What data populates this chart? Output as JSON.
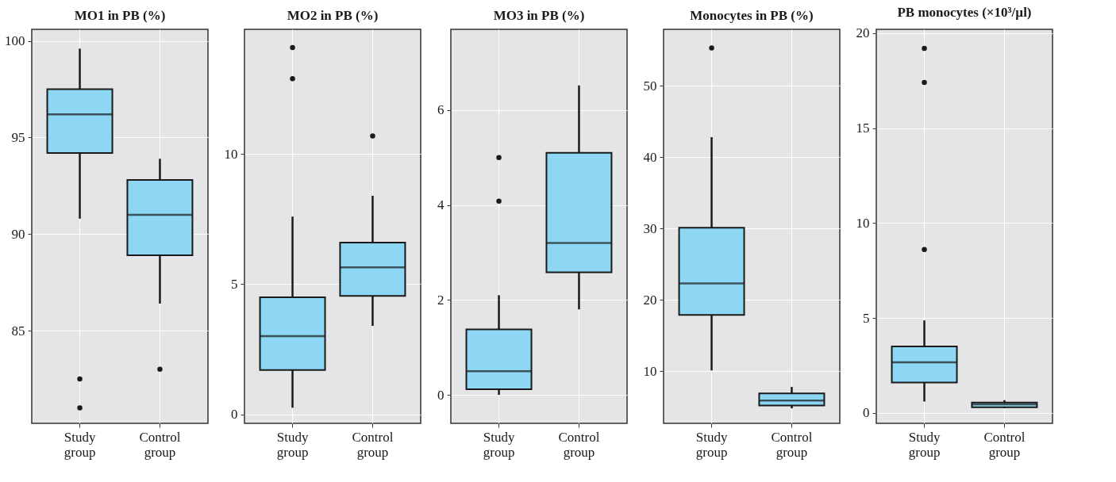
{
  "chart_data": [
    {
      "type": "box",
      "title": "MO1 in PB (%)",
      "categories": [
        "Study group",
        "Control group"
      ],
      "color": "#8dd7f5",
      "grid": true,
      "ylim": [
        80.2,
        100.6
      ],
      "yticks": [
        85,
        90,
        95,
        100
      ],
      "boxes": [
        {
          "low": 90.8,
          "q1": 94.2,
          "median": 96.2,
          "q3": 97.5,
          "high": 99.6,
          "outliers": [
            82.5,
            81.0
          ]
        },
        {
          "low": 86.4,
          "q1": 88.9,
          "median": 91.0,
          "q3": 92.8,
          "high": 93.9,
          "outliers": [
            83.0
          ]
        }
      ]
    },
    {
      "type": "box",
      "title": "MO2 in PB (%)",
      "categories": [
        "Study group",
        "Control group"
      ],
      "color": "#8dd7f5",
      "grid": true,
      "ylim": [
        -0.35,
        14.8
      ],
      "yticks": [
        0,
        5,
        10
      ],
      "boxes": [
        {
          "low": 0.25,
          "q1": 1.7,
          "median": 3.0,
          "q3": 4.5,
          "high": 7.6,
          "outliers": [
            14.1,
            12.9
          ]
        },
        {
          "low": 3.4,
          "q1": 4.55,
          "median": 5.65,
          "q3": 6.6,
          "high": 8.4,
          "outliers": [
            10.7
          ]
        }
      ]
    },
    {
      "type": "box",
      "title": "MO3 in PB (%)",
      "categories": [
        "Study group",
        "Control group"
      ],
      "color": "#8dd7f5",
      "grid": true,
      "ylim": [
        -0.6,
        7.7
      ],
      "yticks": [
        0,
        2,
        4,
        6
      ],
      "boxes": [
        {
          "low": 0.0,
          "q1": 0.12,
          "median": 0.5,
          "q3": 1.38,
          "high": 2.1,
          "outliers": [
            5.0,
            4.08
          ]
        },
        {
          "low": 1.8,
          "q1": 2.58,
          "median": 3.2,
          "q3": 5.1,
          "high": 6.52
        }
      ]
    },
    {
      "type": "box",
      "title": "Monocytes in PB (%)",
      "categories": [
        "Study group",
        "Control group"
      ],
      "color": "#8dd7f5",
      "grid": true,
      "ylim": [
        2.7,
        57.9
      ],
      "yticks": [
        10,
        20,
        30,
        40,
        50
      ],
      "boxes": [
        {
          "low": 10.1,
          "q1": 17.9,
          "median": 22.3,
          "q3": 30.1,
          "high": 42.8,
          "outliers": [
            55.3
          ]
        },
        {
          "low": 4.8,
          "q1": 5.2,
          "median": 5.9,
          "q3": 6.9,
          "high": 7.8
        }
      ]
    },
    {
      "type": "box",
      "title": "PB monocytes (×10³/µl)",
      "categories": [
        "Study group",
        "Control group"
      ],
      "color": "#8dd7f5",
      "grid": true,
      "ylim": [
        -0.55,
        20.2
      ],
      "yticks": [
        0,
        5,
        10,
        15,
        20
      ],
      "boxes": [
        {
          "low": 0.6,
          "q1": 1.6,
          "median": 2.66,
          "q3": 3.5,
          "high": 4.87,
          "outliers": [
            19.2,
            17.4,
            8.6
          ]
        },
        {
          "low": 0.25,
          "q1": 0.3,
          "median": 0.45,
          "q3": 0.55,
          "high": 0.67
        }
      ]
    }
  ]
}
